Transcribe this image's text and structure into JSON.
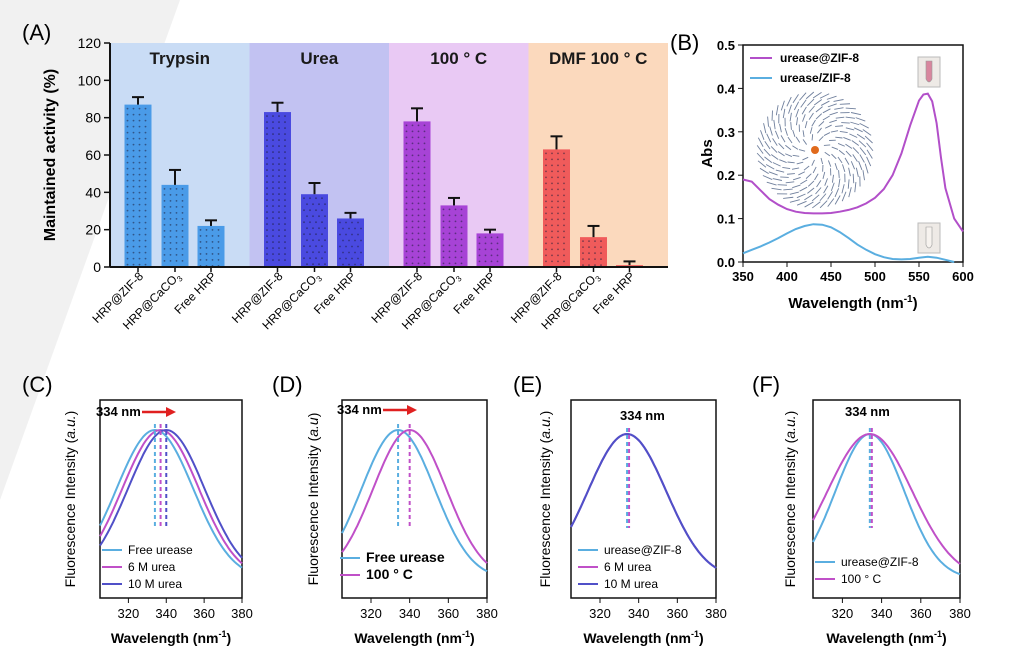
{
  "chart_data": [
    {
      "panel_label": "(A)",
      "type": "bar",
      "ylabel": "Maintained activity (%)",
      "ylim": [
        0,
        120
      ],
      "yticks": [
        0,
        20,
        40,
        60,
        80,
        100,
        120
      ],
      "groups": [
        {
          "name": "Trypsin",
          "background": "#c9dcf5",
          "bar_color": "#4a9be8",
          "categories": [
            "HRP@ZIF-8",
            "HRP@CaCO",
            "Free HRP"
          ],
          "values": [
            87,
            44,
            22
          ],
          "errors": [
            4,
            8,
            3
          ]
        },
        {
          "name": "Urea",
          "background": "#c2c2f2",
          "bar_color": "#4a4ae0",
          "categories": [
            "HRP@ZIF-8",
            "HRP@CaCO",
            "Free HRP"
          ],
          "values": [
            83,
            39,
            26
          ],
          "errors": [
            5,
            6,
            3
          ]
        },
        {
          "name": "100 ° C",
          "background": "#e9c9f4",
          "bar_color": "#a743d6",
          "categories": [
            "HRP@ZIF-8",
            "HRP@CaCO",
            "Free HRP"
          ],
          "values": [
            78,
            33,
            18
          ],
          "errors": [
            7,
            4,
            2
          ]
        },
        {
          "name": "DMF 100 ° C",
          "background": "#fbd9bd",
          "bar_color": "#f05b5b",
          "categories": [
            "HRP@ZIF-8",
            "HRP@CaCO",
            "Free HRP"
          ],
          "values": [
            63,
            16,
            1
          ],
          "errors": [
            7,
            6,
            2
          ]
        }
      ],
      "subscript": "3"
    },
    {
      "panel_label": "(B)",
      "type": "line",
      "xlabel": "Wavelength (nm",
      "xlabel_sup": "-1",
      "ylabel": "Abs",
      "xlim": [
        350,
        600
      ],
      "ylim": [
        0,
        0.5
      ],
      "xticks": [
        350,
        400,
        450,
        500,
        550,
        600
      ],
      "yticks": [
        "0.0",
        "0.1",
        "0.2",
        "0.3",
        "0.4",
        "0.5"
      ],
      "series": [
        {
          "name": "urease@ZIF-8",
          "color": "#b24fc9",
          "x": [
            350,
            360,
            370,
            380,
            390,
            400,
            410,
            420,
            430,
            440,
            450,
            460,
            470,
            480,
            490,
            500,
            510,
            520,
            530,
            540,
            550,
            555,
            560,
            565,
            570,
            575,
            580,
            590,
            600
          ],
          "y": [
            0.19,
            0.185,
            0.165,
            0.145,
            0.132,
            0.122,
            0.116,
            0.113,
            0.112,
            0.112,
            0.113,
            0.116,
            0.12,
            0.126,
            0.135,
            0.148,
            0.168,
            0.2,
            0.25,
            0.315,
            0.372,
            0.386,
            0.388,
            0.37,
            0.32,
            0.24,
            0.17,
            0.1,
            0.07
          ]
        },
        {
          "name": "urease/ZIF-8",
          "color": "#5aaee0",
          "x": [
            350,
            360,
            370,
            380,
            390,
            400,
            410,
            420,
            430,
            440,
            450,
            460,
            470,
            480,
            490,
            500,
            510,
            520,
            530,
            540,
            550,
            560,
            570,
            580,
            590
          ],
          "y": [
            0.02,
            0.028,
            0.036,
            0.045,
            0.055,
            0.066,
            0.076,
            0.083,
            0.087,
            0.086,
            0.08,
            0.069,
            0.055,
            0.04,
            0.028,
            0.018,
            0.011,
            0.007,
            0.006,
            0.007,
            0.01,
            0.012,
            0.01,
            0.005,
            0.0
          ]
        }
      ]
    },
    {
      "panel_label": "(C)",
      "type": "line",
      "xlabel": "Wavelength (nm",
      "xlabel_sup": "-1",
      "ylabel": "Fluorescence Intensity (",
      "ylabel_italic": "a.u.",
      "xlim": [
        305,
        380
      ],
      "xticks": [
        320,
        340,
        360,
        380
      ],
      "annotation": "334 nm",
      "arrow": true,
      "peak_lines": [
        {
          "x": 334,
          "color": "#5aaee0"
        },
        {
          "x": 337,
          "color": "#c050c8"
        },
        {
          "x": 340,
          "color": "#5050c8"
        }
      ],
      "series": [
        {
          "name": "Free urease",
          "color": "#5aaee0",
          "peak": 334,
          "width": 30
        },
        {
          "name": "6 M urea",
          "color": "#c050c8",
          "peak": 337,
          "width": 30
        },
        {
          "name": "10 M urea",
          "color": "#5050c8",
          "peak": 340,
          "width": 30
        }
      ]
    },
    {
      "panel_label": "(D)",
      "type": "line",
      "xlabel": "Wavelength (nm",
      "xlabel_sup": "-1",
      "ylabel": "Fluorescence Intensity (",
      "ylabel_italic": "a.u",
      "xlim": [
        305,
        380
      ],
      "xticks": [
        320,
        340,
        360,
        380
      ],
      "annotation": "334 nm",
      "arrow": true,
      "peak_lines": [
        {
          "x": 334,
          "color": "#5aaee0"
        },
        {
          "x": 340,
          "color": "#c050c8"
        }
      ],
      "series": [
        {
          "name": "Free urease",
          "color": "#5aaee0",
          "peak": 334,
          "width": 28
        },
        {
          "name": "100 ° C",
          "color": "#c050c8",
          "peak": 340,
          "width": 28
        }
      ]
    },
    {
      "panel_label": "(E)",
      "type": "line",
      "xlabel": "Wavelength (nm",
      "xlabel_sup": "-1",
      "ylabel": "Fluorescence Intensity (",
      "ylabel_italic": "a.u.",
      "xlim": [
        305,
        380
      ],
      "xticks": [
        320,
        340,
        360,
        380
      ],
      "annotation": "334 nm",
      "arrow": false,
      "peak_lines": [
        {
          "x": 334,
          "color": "#5aaee0"
        },
        {
          "x": 334,
          "color": "#c050c8"
        }
      ],
      "series": [
        {
          "name": "urease@ZIF-8",
          "color": "#5aaee0",
          "peak": 334,
          "width": 30
        },
        {
          "name": "6 M urea",
          "color": "#c050c8",
          "peak": 334,
          "width": 30
        },
        {
          "name": "10 M urea",
          "color": "#5050c8",
          "peak": 334,
          "width": 30
        }
      ]
    },
    {
      "panel_label": "(F)",
      "type": "line",
      "xlabel": "Wavelength (nm",
      "xlabel_sup": "-1",
      "ylabel": "Fluorescence Intensity (",
      "ylabel_italic": "a.u.",
      "xlim": [
        305,
        380
      ],
      "xticks": [
        320,
        340,
        360,
        380
      ],
      "annotation": "334 nm",
      "arrow": false,
      "peak_lines": [
        {
          "x": 334,
          "color": "#5aaee0"
        },
        {
          "x": 334,
          "color": "#c050c8"
        }
      ],
      "series": [
        {
          "name": "urease@ZIF-8",
          "color": "#5aaee0",
          "peak": 334,
          "width": 26
        },
        {
          "name": "100 ° C",
          "color": "#c050c8",
          "peak": 334,
          "width": 32
        }
      ]
    }
  ]
}
